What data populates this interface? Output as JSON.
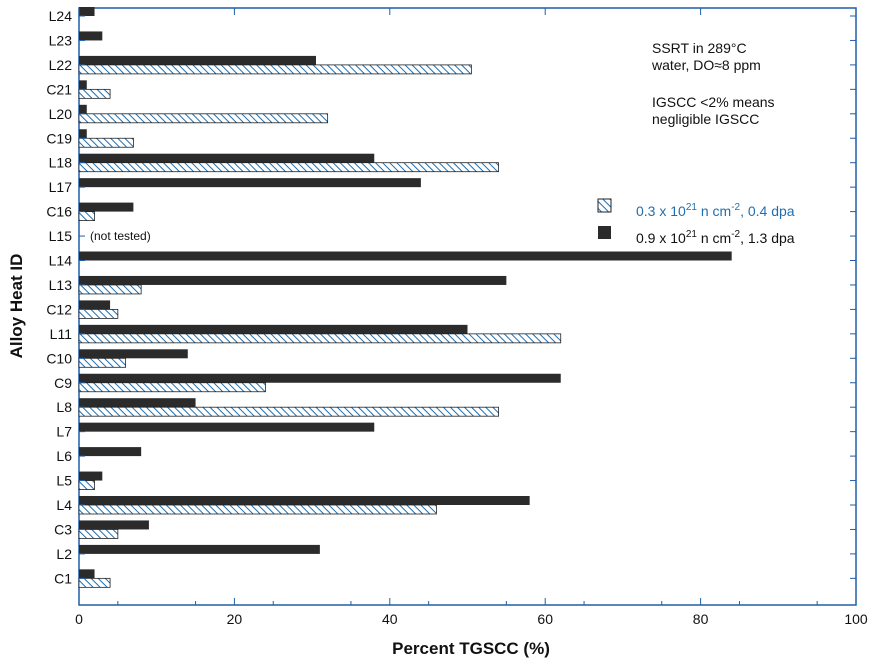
{
  "chart_data": {
    "type": "bar",
    "orientation": "horizontal",
    "xlabel": "Percent TGSCC (%)",
    "ylabel": "Alloy Heat ID",
    "xlim": [
      0,
      100
    ],
    "xticks": [
      0,
      20,
      40,
      60,
      80,
      100
    ],
    "grid": false,
    "legend_position": "right",
    "categories": [
      "L24",
      "L23",
      "L22",
      "C21",
      "L20",
      "C19",
      "L18",
      "L17",
      "C16",
      "L15",
      "L14",
      "L13",
      "C12",
      "L11",
      "C10",
      "C9",
      "L8",
      "L7",
      "L6",
      "L5",
      "L4",
      "C3",
      "L2",
      "C1"
    ],
    "series": [
      {
        "name": "0.9 x 10^21 n cm^-2, 1.3 dpa",
        "label_main": "0.9 x 10",
        "label_sup1": "21",
        "label_mid": " n cm",
        "label_sup2": "-2",
        "label_end": ", 1.3 dpa",
        "fill": "solid",
        "color": "#2b2b2b",
        "values": [
          2,
          3,
          30.5,
          1,
          1,
          1,
          38,
          44,
          7,
          null,
          84,
          55,
          4,
          50,
          14,
          62,
          15,
          38,
          8,
          3,
          58,
          9,
          31,
          2
        ]
      },
      {
        "name": "0.3 x 10^21 n cm^-2, 0.4 dpa",
        "label_main": "0.3 x 10",
        "label_sup1": "21",
        "label_mid": " n cm",
        "label_sup2": "-2",
        "label_end": ", 0.4 dpa",
        "fill": "hatched",
        "color": "#1f6fb0",
        "values": [
          null,
          null,
          50.5,
          4,
          32,
          7,
          54,
          null,
          2,
          null,
          null,
          8,
          5,
          62,
          6,
          24,
          54,
          null,
          null,
          2,
          46,
          5,
          null,
          4
        ]
      }
    ],
    "annotations": {
      "conditions_line1": "SSRT in 289°C",
      "conditions_line2": "water, DO≈8 ppm",
      "criterion_line1": "IGSCC <2% means",
      "criterion_line2": "negligible IGSCC",
      "not_tested": "(not tested)",
      "not_tested_category": "L15"
    }
  }
}
